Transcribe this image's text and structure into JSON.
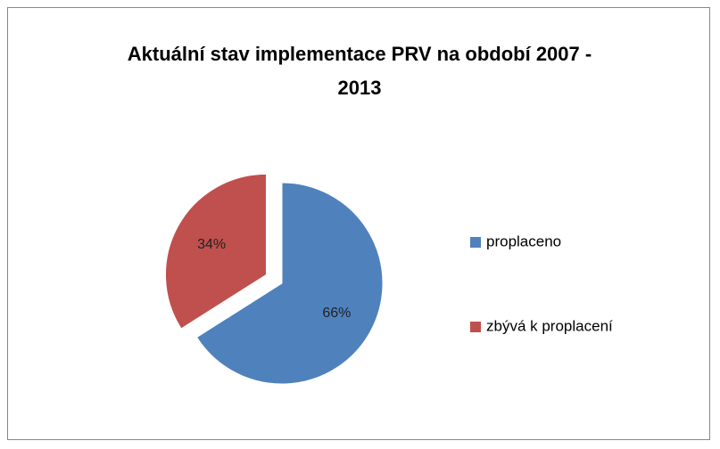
{
  "chart_data": {
    "type": "pie",
    "title": "Aktuální stav implementace PRV na období 2007 - 2013",
    "categories": [
      "proplaceno",
      "zbývá k proplacení"
    ],
    "values": [
      66,
      34
    ],
    "value_labels": [
      "66%",
      "34%"
    ],
    "colors": [
      "#4f81bd",
      "#c0504d"
    ],
    "legend": "right"
  }
}
